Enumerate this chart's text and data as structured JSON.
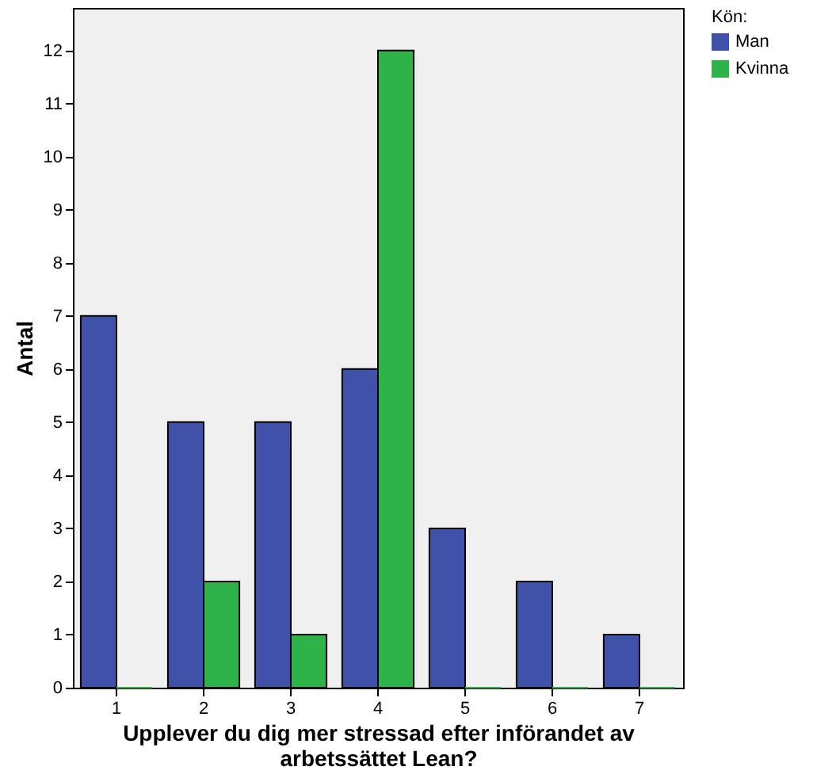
{
  "chart_data": {
    "type": "bar",
    "xlabel": "Upplever du dig mer stressad efter införandet av arbetssättet Lean?",
    "ylabel": "Antal",
    "legend_title": "Kön:",
    "categories": [
      "1",
      "2",
      "3",
      "4",
      "5",
      "6",
      "7"
    ],
    "series": [
      {
        "name": "Man",
        "color": "#3f51a8",
        "values": [
          7,
          5,
          5,
          6,
          3,
          2,
          1
        ]
      },
      {
        "name": "Kvinna",
        "color": "#2db34a",
        "values": [
          0,
          2,
          1,
          12,
          0,
          0,
          0
        ]
      }
    ],
    "ylim": [
      0,
      12.8
    ],
    "yticks": [
      0,
      1,
      2,
      3,
      4,
      5,
      6,
      7,
      8,
      9,
      10,
      11,
      12
    ],
    "grid": false,
    "legend": "top right"
  }
}
